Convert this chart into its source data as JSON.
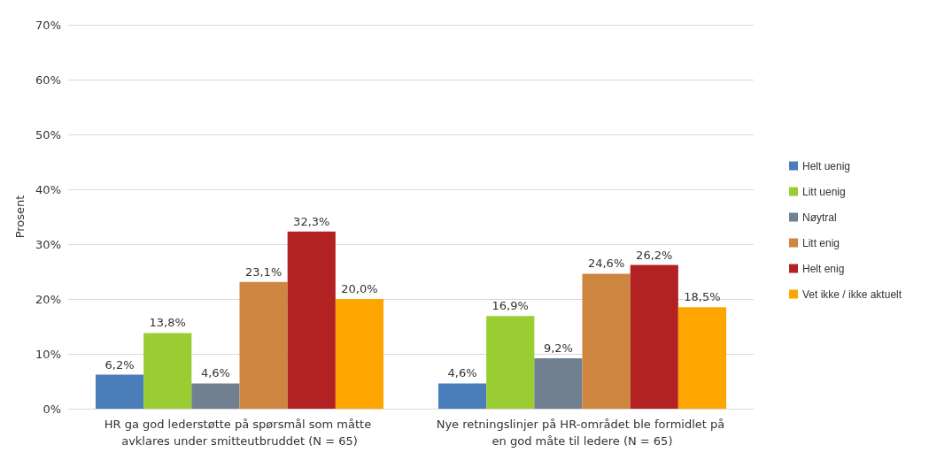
{
  "chart_data": {
    "type": "bar",
    "ylabel": "Prosent",
    "categories": [
      "HR ga god lederstøtte på spørsmål som måtte avklares under smitteutbruddet (N = 65)",
      "Nye retningslinjer på HR-området ble formidlet på en god måte til ledere (N = 65)"
    ],
    "series": [
      {
        "name": "Helt uenig",
        "color": "#4a7ebb",
        "values": [
          6.2,
          4.6
        ],
        "value_labels": [
          "6,2%",
          "4,6%"
        ]
      },
      {
        "name": "Litt uenig",
        "color": "#9acd32",
        "values": [
          13.8,
          16.9
        ],
        "value_labels": [
          "13,8%",
          "16,9%"
        ]
      },
      {
        "name": "Nøytral",
        "color": "#708090",
        "values": [
          4.6,
          9.2
        ],
        "value_labels": [
          "4,6%",
          "9,2%"
        ]
      },
      {
        "name": "Litt enig",
        "color": "#cd853f",
        "values": [
          23.1,
          24.6
        ],
        "value_labels": [
          "23,1%",
          "24,6%"
        ]
      },
      {
        "name": "Helt enig",
        "color": "#b22222",
        "values": [
          32.3,
          26.2
        ],
        "value_labels": [
          "32,3%",
          "26,2%"
        ]
      },
      {
        "name": "Vet ikke / ikke aktuelt",
        "color": "#ffa500",
        "values": [
          20.0,
          18.5
        ],
        "value_labels": [
          "20,0%",
          "18,5%"
        ]
      }
    ],
    "ylim": [
      0,
      70
    ],
    "yticks": [
      {
        "value": 0,
        "label": "0%"
      },
      {
        "value": 10,
        "label": "10%"
      },
      {
        "value": 20,
        "label": "20%"
      },
      {
        "value": 30,
        "label": "30%"
      },
      {
        "value": 40,
        "label": "40%"
      },
      {
        "value": 50,
        "label": "50%"
      },
      {
        "value": 60,
        "label": "60%"
      },
      {
        "value": 70,
        "label": "70%"
      }
    ],
    "grid": "y",
    "legend": "right"
  }
}
